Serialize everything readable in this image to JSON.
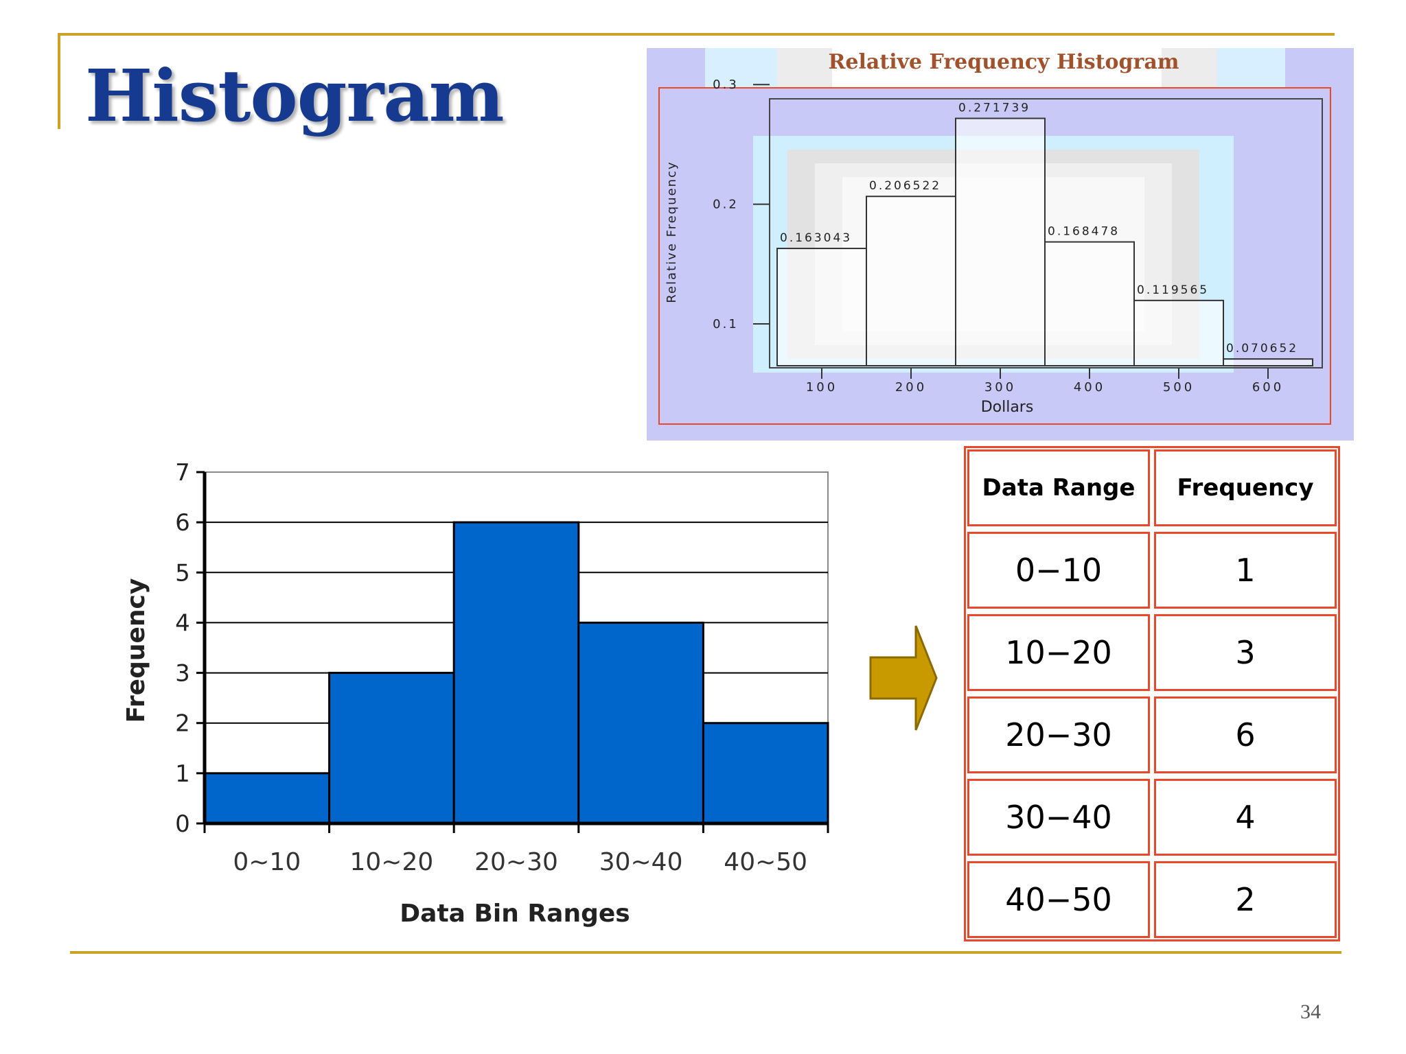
{
  "slide": {
    "title": "Histogram",
    "page_number": "34"
  },
  "colors": {
    "accent_rule": "#c9a227",
    "title": "#163a8f",
    "bar_fill": "#0066cc",
    "table_border": "#e8492c",
    "arrow": "#c99a00",
    "rel_panel_bg": "#c9c9f7",
    "rel_title": "#a0522d"
  },
  "chart_data": [
    {
      "type": "bar",
      "title": "Relative Frequency Histogram",
      "xlabel": "Dollars",
      "ylabel": "Relative Frequency",
      "x_ticks": [
        "100",
        "200",
        "300",
        "400",
        "500",
        "600"
      ],
      "y_ticks": [
        "0.1",
        "0.2",
        "0.3"
      ],
      "ylim": [
        0.065,
        0.305
      ],
      "values": [
        0.163043,
        0.206522,
        0.271739,
        0.168478,
        0.119565,
        0.070652
      ],
      "data_labels": [
        "0.163043",
        "0.206522",
        "0.271739",
        "0.168478",
        "0.119565",
        "0.070652"
      ],
      "grid": false,
      "legend": "none"
    },
    {
      "type": "bar",
      "title": "",
      "xlabel": "Data Bin Ranges",
      "ylabel": "Frequency",
      "categories": [
        "0~10",
        "10~20",
        "20~30",
        "30~40",
        "40~50"
      ],
      "values": [
        1,
        3,
        6,
        4,
        2
      ],
      "ylim": [
        0,
        7
      ],
      "y_ticks": [
        "0",
        "1",
        "2",
        "3",
        "4",
        "5",
        "6",
        "7"
      ],
      "grid": true,
      "legend": "none"
    }
  ],
  "table": {
    "headers": [
      "Data Range",
      "Frequency"
    ],
    "rows": [
      [
        "0−10",
        "1"
      ],
      [
        "10−20",
        "3"
      ],
      [
        "20−30",
        "6"
      ],
      [
        "30−40",
        "4"
      ],
      [
        "40−50",
        "2"
      ]
    ]
  }
}
